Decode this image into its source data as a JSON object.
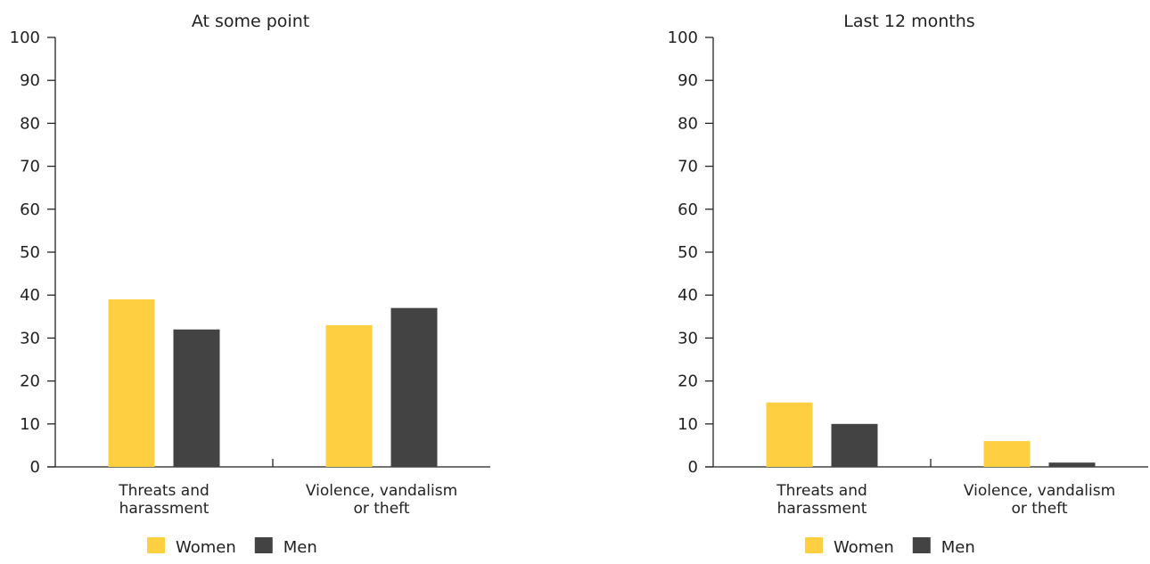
{
  "chart_data": [
    {
      "type": "bar",
      "title": "At some point",
      "categories": [
        [
          "Threats and",
          "harassment"
        ],
        [
          "Violence, vandalism",
          "or theft"
        ]
      ],
      "series": [
        {
          "name": "Women",
          "values": [
            39,
            33
          ]
        },
        {
          "name": "Men",
          "values": [
            32,
            37
          ]
        }
      ],
      "ylim": [
        0,
        100
      ],
      "yticks": [
        0,
        10,
        20,
        30,
        40,
        50,
        60,
        70,
        80,
        90,
        100
      ],
      "grid": false,
      "legend": "bottom"
    },
    {
      "type": "bar",
      "title": "Last 12 months",
      "categories": [
        [
          "Threats and",
          "harassment"
        ],
        [
          "Violence, vandalism",
          "or theft"
        ]
      ],
      "series": [
        {
          "name": "Women",
          "values": [
            15,
            6
          ]
        },
        {
          "name": "Men",
          "values": [
            10,
            1
          ]
        }
      ],
      "ylim": [
        0,
        100
      ],
      "yticks": [
        0,
        10,
        20,
        30,
        40,
        50,
        60,
        70,
        80,
        90,
        100
      ],
      "grid": false,
      "legend": "bottom"
    }
  ],
  "colors": {
    "Women": "#fdcf41",
    "Men": "#434343",
    "axis": "#222222"
  }
}
